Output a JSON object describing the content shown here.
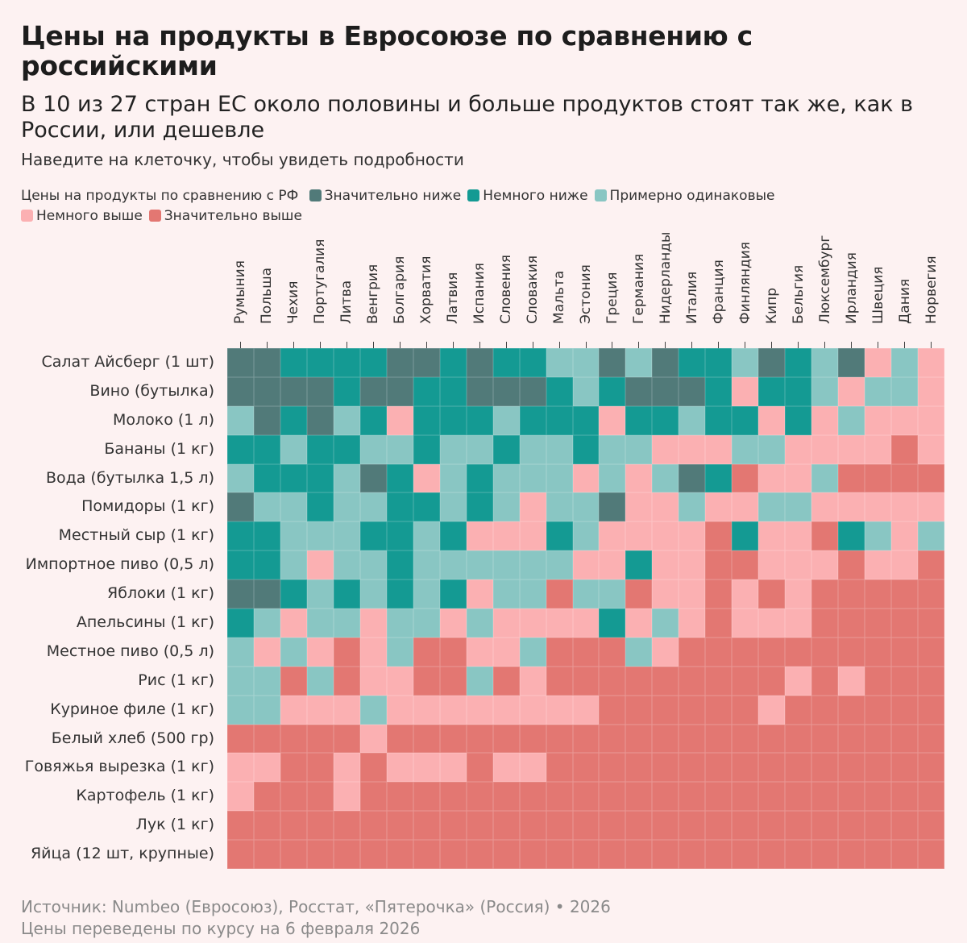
{
  "title": "Цены на продукты в Евросоюзе по сравнению с российскими",
  "subtitle": "В 10 из 27 стран ЕС около половины и больше продуктов стоят так же, как в России, или дешевле",
  "hint": "Наведите на клеточку, чтобы увидеть подробности",
  "footer": {
    "source": "Источник: Numbeo (Евросоюз), Росстат, «Пятерочка» (Россия) • 2026",
    "note": "Цены переведены по курсу на 6 февраля 2026"
  },
  "chart_data": {
    "type": "heatmap",
    "legend_title": "Цены на продукты по сравнению с РФ",
    "legend": [
      {
        "label": "Значительно ниже",
        "color": "#517a79"
      },
      {
        "label": "Немного ниже",
        "color": "#149a93"
      },
      {
        "label": "Примерно одинаковые",
        "color": "#89c6c3"
      },
      {
        "label": "Немного выше",
        "color": "#fbb0b2"
      },
      {
        "label": "Значительно выше",
        "color": "#e37772"
      }
    ],
    "columns": [
      "Румыния",
      "Польша",
      "Чехия",
      "Португалия",
      "Литва",
      "Венгрия",
      "Болгария",
      "Хорватия",
      "Латвия",
      "Испания",
      "Словения",
      "Словакия",
      "Мальта",
      "Эстония",
      "Греция",
      "Германия",
      "Нидерланды",
      "Италия",
      "Франция",
      "Финляндия",
      "Кипр",
      "Бельгия",
      "Люксембург",
      "Ирландия",
      "Швеция",
      "Дания",
      "Норвегия"
    ],
    "rows": [
      "Салат Айсберг (1 шт)",
      "Вино (бутылка)",
      "Молоко (1 л)",
      "Бананы (1 кг)",
      "Вода (бутылка 1,5 л)",
      "Помидоры (1 кг)",
      "Местный сыр (1 кг)",
      "Импортное пиво (0,5 л)",
      "Яблоки (1 кг)",
      "Апельсины (1 кг)",
      "Местное пиво (0,5 л)",
      "Рис (1 кг)",
      "Куриное филе (1 кг)",
      "Белый хлеб (500 гр)",
      "Говяжья вырезка (1 кг)",
      "Картофель (1 кг)",
      "Лук (1 кг)",
      "Яйца (12 шт, крупные)"
    ],
    "value_key": "each digit is the index into legend, one per column",
    "values": [
      "001111001011220201120120323",
      "000010011000121000131123223",
      "201021311121113112113132333",
      "112112212212212233322333343",
      "211120132122232320143324444",
      "022122112123220332332233333",
      "112221121333123333413341232",
      "112322122222233133443334334",
      "001212121322422433434344444",
      "123223223233331323433344444",
      "232343244332444234444444444",
      "224243344243444444444343444",
      "223332333333334444443444444",
      "444443444444444444444444444",
      "334434333433444444444444444",
      "344434444444444444444444444",
      "444444444444444444444444444",
      "444444444444444444444444444"
    ]
  }
}
